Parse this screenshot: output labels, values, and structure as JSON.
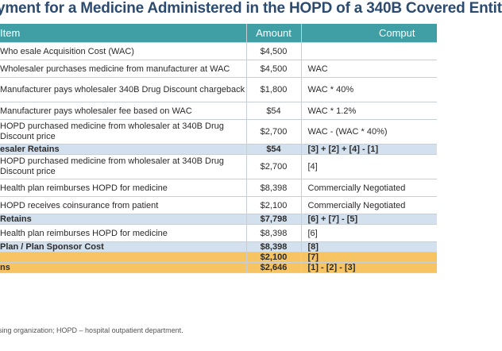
{
  "title": "yment for a Medicine Administered in the HOPD of a 340B Covered Entit",
  "headers": {
    "item": "Item",
    "amount": "Amount",
    "computation": "Comput"
  },
  "rows": [
    {
      "item": "Who esale Acquisition Cost (WAC)",
      "amount": "$4,500",
      "comp": "",
      "style": "r1"
    },
    {
      "item": "Wholesaler purchases medicine from manufacturer at WAC",
      "amount": "$4,500",
      "comp": "WAC",
      "style": "r1"
    },
    {
      "item": "Manufacturer pays wholesaler 340B Drug Discount chargeback",
      "amount": "$1,800",
      "comp": "WAC * 40%",
      "style": "r2"
    },
    {
      "item": "Manufacturer pays wholesaler fee based on WAC",
      "amount": "$54",
      "comp": "WAC * 1.2%",
      "style": "r1"
    },
    {
      "item": "HOPD purchased medicine from wholesaler at 340B Drug Discount price",
      "amount": "$2,700",
      "comp": "WAC - (WAC * 40%)",
      "style": "r2"
    },
    {
      "item": "esaler Retains",
      "amount": "$54",
      "comp": "[3] + [2] + [4] - [1]",
      "style": "blue"
    },
    {
      "item": "HOPD purchased medicine from wholesaler at 340B Drug Discount price",
      "amount": "$2,700",
      "comp": "[4]",
      "style": "r2"
    },
    {
      "item": "Health plan reimburses HOPD for medicine",
      "amount": "$8,398",
      "comp": "Commercially Negotiated",
      "style": "r1"
    },
    {
      "item": "HOPD receives coinsurance from patient",
      "amount": "$2,100",
      "comp": "Commercially Negotiated",
      "style": "r1"
    },
    {
      "item": "Retains",
      "amount": "$7,798",
      "comp": "[6] + [7] - [5]",
      "style": "blue"
    },
    {
      "item": "Health plan reimburses HOPD for medicine",
      "amount": "$8,398",
      "comp": "[6]",
      "style": "r1"
    },
    {
      "item": "Plan / Plan Sponsor Cost",
      "amount": "$8,398",
      "comp": "[8]",
      "style": "blue"
    },
    {
      "item": "",
      "amount": "$2,100",
      "comp": "[7]",
      "style": "gold"
    },
    {
      "item": "ns",
      "amount": "$2,646",
      "comp": "[1] - [2] - [3]",
      "style": "gold"
    }
  ],
  "footnote": "sing organization; HOPD – hospital outpatient department."
}
